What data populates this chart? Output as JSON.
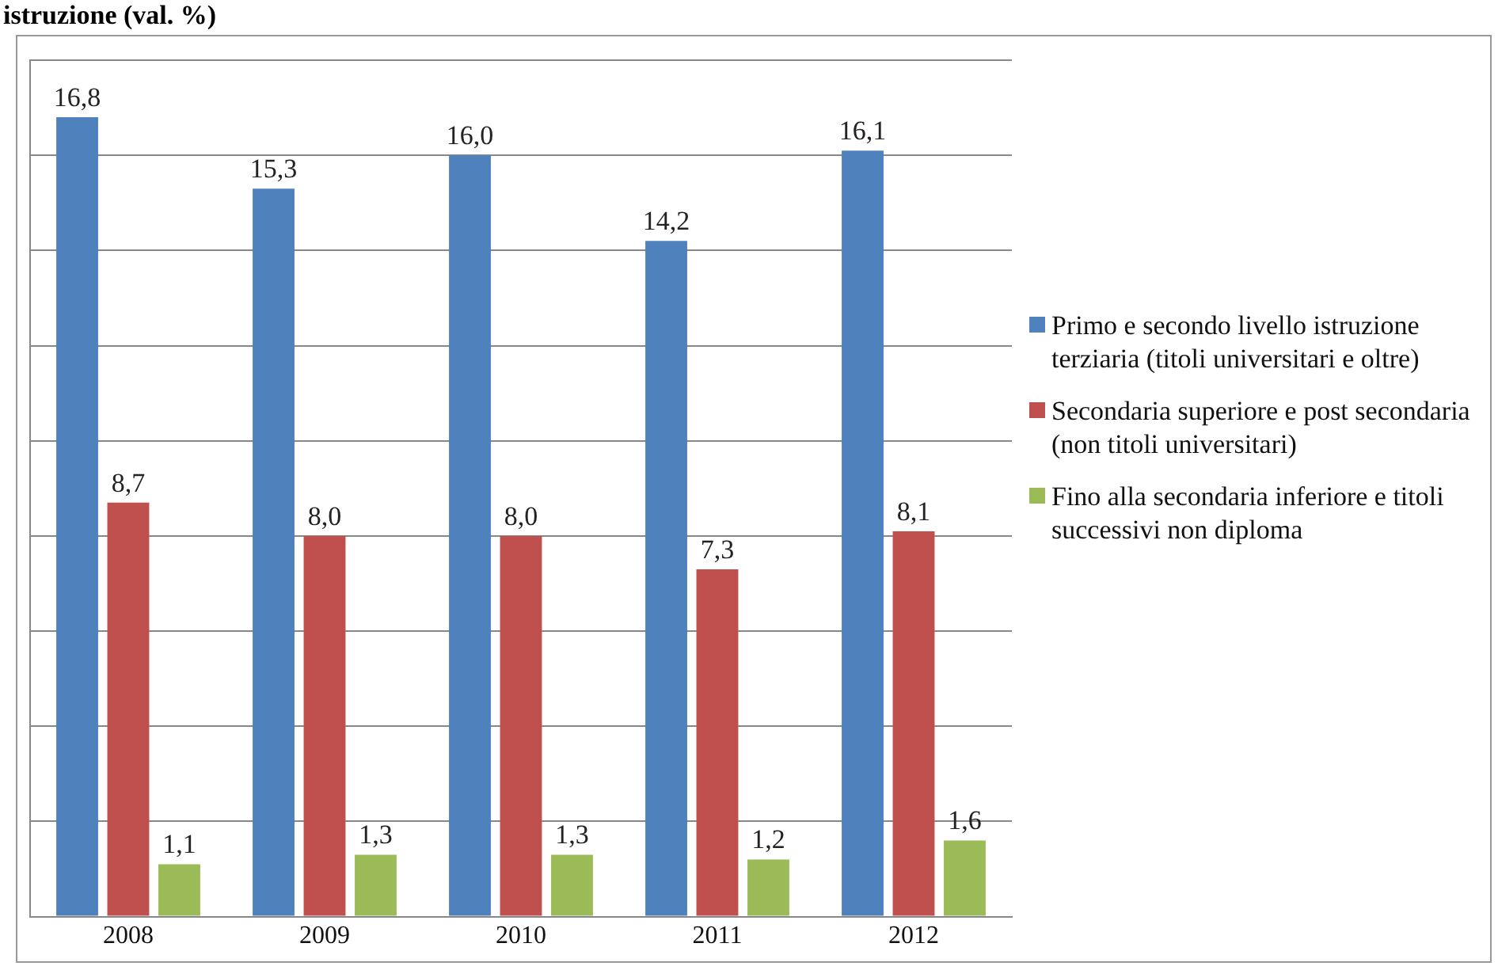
{
  "chart_data": {
    "type": "bar",
    "title": "istruzione (val. %)",
    "categories": [
      "2008",
      "2009",
      "2010",
      "2011",
      "2012"
    ],
    "series": [
      {
        "name": "Primo e secondo livello istruzione terziaria (titoli universitari e oltre)",
        "color": "#4f81bd",
        "values": [
          16.8,
          15.3,
          16.0,
          14.2,
          16.1
        ],
        "value_labels": [
          "16,8",
          "15,3",
          "16,0",
          "14,2",
          "16,1"
        ]
      },
      {
        "name": "Secondaria superiore e post secondaria (non titoli universitari)",
        "color": "#c0504d",
        "values": [
          8.7,
          8.0,
          8.0,
          7.3,
          8.1
        ],
        "value_labels": [
          "8,7",
          "8,0",
          "8,0",
          "7,3",
          "8,1"
        ]
      },
      {
        "name": "Fino alla secondaria inferiore e titoli successivi non diploma",
        "color": "#9bbb59",
        "values": [
          1.1,
          1.3,
          1.3,
          1.2,
          1.6
        ],
        "value_labels": [
          "1,1",
          "1,3",
          "1,3",
          "1,2",
          "1,6"
        ]
      }
    ],
    "tick_labels": "x",
    "grid": "y",
    "legend": "right"
  }
}
